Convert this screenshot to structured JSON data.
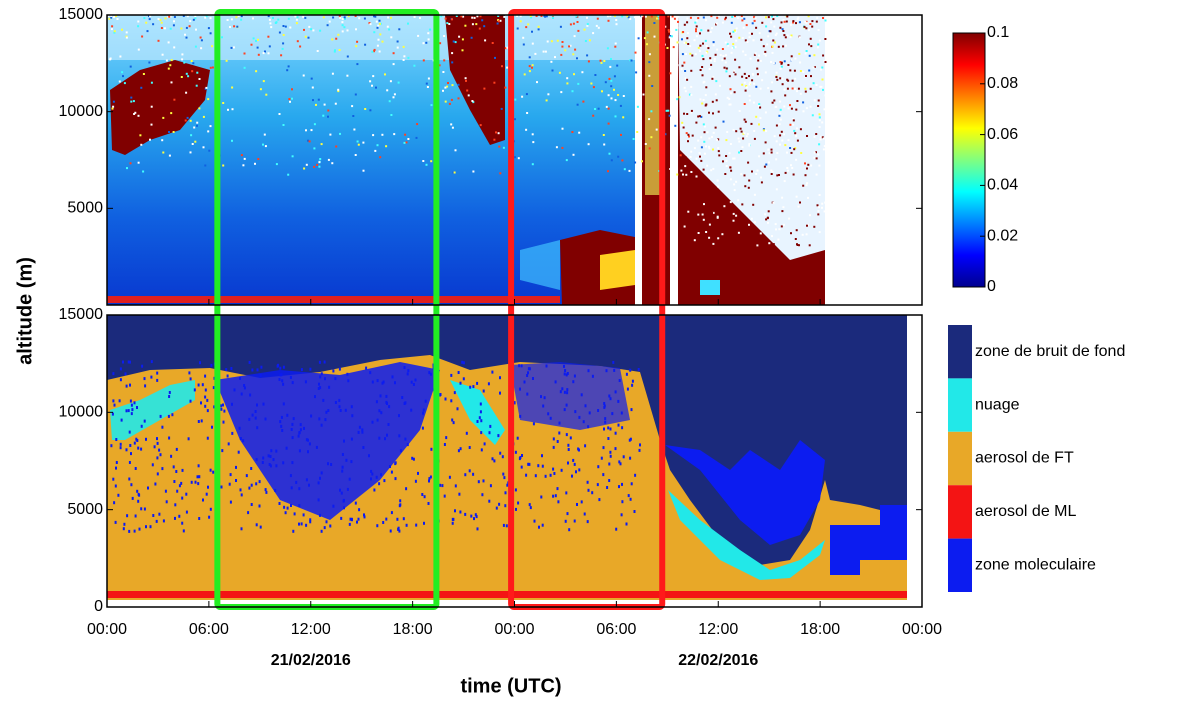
{
  "chart_data": [
    {
      "type": "heatmap",
      "xlim": [
        0,
        48
      ],
      "ylim": [
        0,
        15000
      ],
      "yticks": [
        5000,
        10000,
        15000
      ],
      "clim": [
        0,
        0.1
      ],
      "cticks": [
        0,
        0.02,
        0.04,
        0.06,
        0.08,
        0.1
      ],
      "colormap": [
        "#00008f",
        "#0000ff",
        "#0080ff",
        "#00ffff",
        "#80ff80",
        "#ffff00",
        "#ff8000",
        "#ff0000",
        "#800000"
      ]
    },
    {
      "type": "classification",
      "ylabel": "altitude (m)",
      "xlabel": "time (UTC)",
      "xlim": [
        0,
        48
      ],
      "ylim": [
        0,
        15000
      ],
      "yticks": [
        0,
        5000,
        10000,
        15000
      ],
      "xticks": [
        {
          "value": 0,
          "label": "00:00"
        },
        {
          "value": 6,
          "label": "06:00"
        },
        {
          "value": 12,
          "label": "12:00"
        },
        {
          "value": 18,
          "label": "18:00"
        },
        {
          "value": 24,
          "label": "00:00"
        },
        {
          "value": 30,
          "label": "06:00"
        },
        {
          "value": 36,
          "label": "12:00"
        },
        {
          "value": 42,
          "label": "18:00"
        },
        {
          "value": 48,
          "label": "00:00"
        }
      ],
      "dates": [
        {
          "value": 12,
          "label": "21/02/2016"
        },
        {
          "value": 36,
          "label": "22/02/2016"
        }
      ],
      "classes": [
        {
          "name": "zone de bruit de fond",
          "color": "#1b2a7c"
        },
        {
          "name": "nuage",
          "color": "#22e8e8"
        },
        {
          "name": "aerosol de FT",
          "color": "#e8a828"
        },
        {
          "name": "aerosol de ML",
          "color": "#f41414"
        },
        {
          "name": "zone moleculaire",
          "color": "#0c1cf0"
        }
      ],
      "highlights": [
        {
          "color": "#22ee22",
          "x": [
            6.5,
            19.4
          ]
        },
        {
          "color": "#ff1a1a",
          "x": [
            23.8,
            32.7
          ]
        }
      ]
    }
  ]
}
